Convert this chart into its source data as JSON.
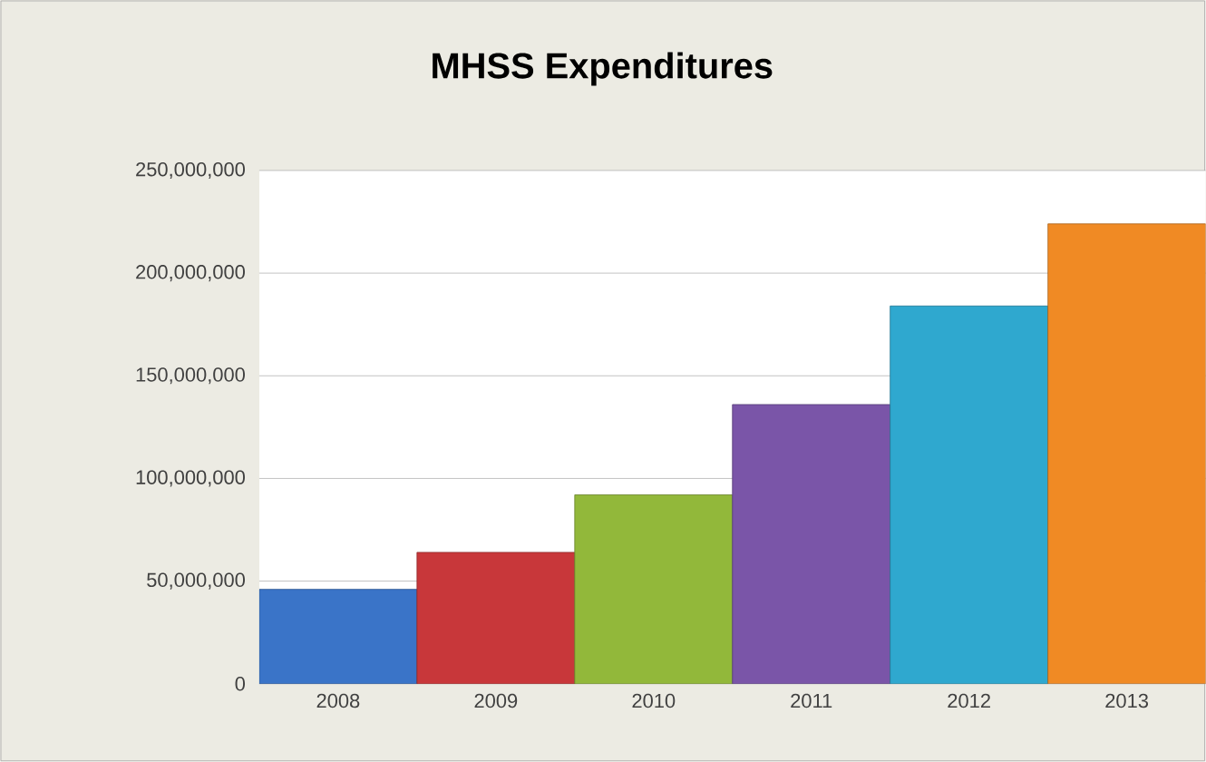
{
  "chart_data": {
    "type": "bar",
    "title": "MHSS Expenditures",
    "categories": [
      "2008",
      "2009",
      "2010",
      "2011",
      "2012",
      "2013"
    ],
    "values": [
      46000000,
      64000000,
      92000000,
      136000000,
      184000000,
      224000000
    ],
    "colors": [
      "#3a74c8",
      "#c8373a",
      "#92b83a",
      "#7a55a8",
      "#2fa8cf",
      "#f08a24"
    ],
    "ylim": [
      0,
      250000000
    ],
    "yticks": [
      0,
      {
        "value": 50000000,
        "label": "50,000,000"
      },
      {
        "value": 100000000,
        "label": "100,000,000"
      },
      {
        "value": 150000000,
        "label": "150,000,000"
      },
      {
        "value": 200000000,
        "label": "200,000,000"
      },
      {
        "value": 250000000,
        "label": "250,000,000"
      }
    ],
    "grid": "y"
  }
}
